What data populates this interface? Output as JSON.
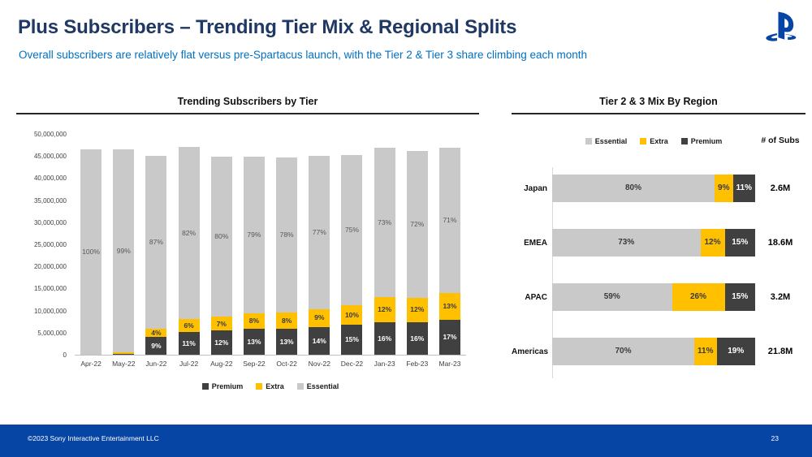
{
  "header": {
    "title": "Plus Subscribers – Trending Tier Mix & Regional Splits",
    "subtitle": "Overall subscribers are relatively flat versus pre-Spartacus launch, with the Tier 2 & Tier 3 share climbing each month",
    "logo": "playstation-logo"
  },
  "footer": {
    "copyright": "©2023 Sony Interactive Entertainment LLC",
    "page_number": "23"
  },
  "colors": {
    "title_navy": "#1F3864",
    "subtitle_blue": "#0070C0",
    "footer_blue": "#0645A3",
    "essential": "#C9C9C9",
    "extra": "#FFC000",
    "premium": "#404040"
  },
  "chart_data": [
    {
      "type": "bar",
      "stacked": true,
      "title": "Trending Subscribers by Tier",
      "categories": [
        "Apr-22",
        "May-22",
        "Jun-22",
        "Jul-22",
        "Aug-22",
        "Sep-22",
        "Oct-22",
        "Nov-22",
        "Dec-22",
        "Jan-23",
        "Feb-23",
        "Mar-23"
      ],
      "totals_subscribers_millions": [
        46.5,
        46.6,
        45.0,
        47.6,
        45.3,
        44.8,
        45.2,
        45.0,
        45.2,
        46.4,
        46.2,
        46.5
      ],
      "series": [
        {
          "name": "Premium",
          "color": "#404040",
          "pct": [
            0,
            0.3,
            9,
            11,
            12,
            13,
            13,
            14,
            15,
            16,
            16,
            17
          ],
          "labels": [
            "",
            "",
            "9%",
            "11%",
            "12%",
            "13%",
            "13%",
            "14%",
            "15%",
            "16%",
            "16%",
            "17%"
          ]
        },
        {
          "name": "Extra",
          "color": "#FFC000",
          "pct": [
            0,
            0.7,
            4,
            6,
            7,
            8,
            8,
            9,
            10,
            12,
            12,
            13
          ],
          "labels": [
            "",
            "",
            "4%",
            "6%",
            "7%",
            "8%",
            "8%",
            "9%",
            "10%",
            "12%",
            "12%",
            "13%"
          ]
        },
        {
          "name": "Essential",
          "color": "#C9C9C9",
          "pct": [
            100,
            99,
            87,
            82,
            80,
            79,
            78,
            77,
            75,
            73,
            72,
            71
          ],
          "labels": [
            "100%",
            "99%",
            "87%",
            "82%",
            "80%",
            "79%",
            "78%",
            "77%",
            "75%",
            "73%",
            "72%",
            "71%"
          ]
        }
      ],
      "ylim": [
        0,
        50000000
      ],
      "yticks": [
        "50,000,000",
        "45,000,000",
        "40,000,000",
        "35,000,000",
        "30,000,000",
        "25,000,000",
        "20,000,000",
        "15,000,000",
        "10,000,000",
        "5,000,000",
        "0"
      ],
      "legend": [
        "Premium",
        "Extra",
        "Essential"
      ],
      "legend_position": "bottom",
      "grid": false
    },
    {
      "type": "bar",
      "orientation": "horizontal",
      "stacked": true,
      "title": "Tier 2 & 3 Mix By Region",
      "legend": [
        "Essential",
        "Extra",
        "Premium"
      ],
      "legend_position": "top",
      "subs_header": "# of Subs",
      "rows": [
        {
          "region": "Japan",
          "essential": 80,
          "extra": 9,
          "premium": 11,
          "labels": {
            "essential": "80%",
            "extra": "9%",
            "premium": "11%"
          },
          "subs": "2.6M"
        },
        {
          "region": "EMEA",
          "essential": 73,
          "extra": 12,
          "premium": 15,
          "labels": {
            "essential": "73%",
            "extra": "12%",
            "premium": "15%"
          },
          "subs": "18.6M"
        },
        {
          "region": "APAC",
          "essential": 59,
          "extra": 26,
          "premium": 15,
          "labels": {
            "essential": "59%",
            "extra": "26%",
            "premium": "15%"
          },
          "subs": "3.2M"
        },
        {
          "region": "Americas",
          "essential": 70,
          "extra": 11,
          "premium": 19,
          "labels": {
            "essential": "70%",
            "extra": "11%",
            "premium": "19%"
          },
          "subs": "21.8M"
        }
      ]
    }
  ]
}
